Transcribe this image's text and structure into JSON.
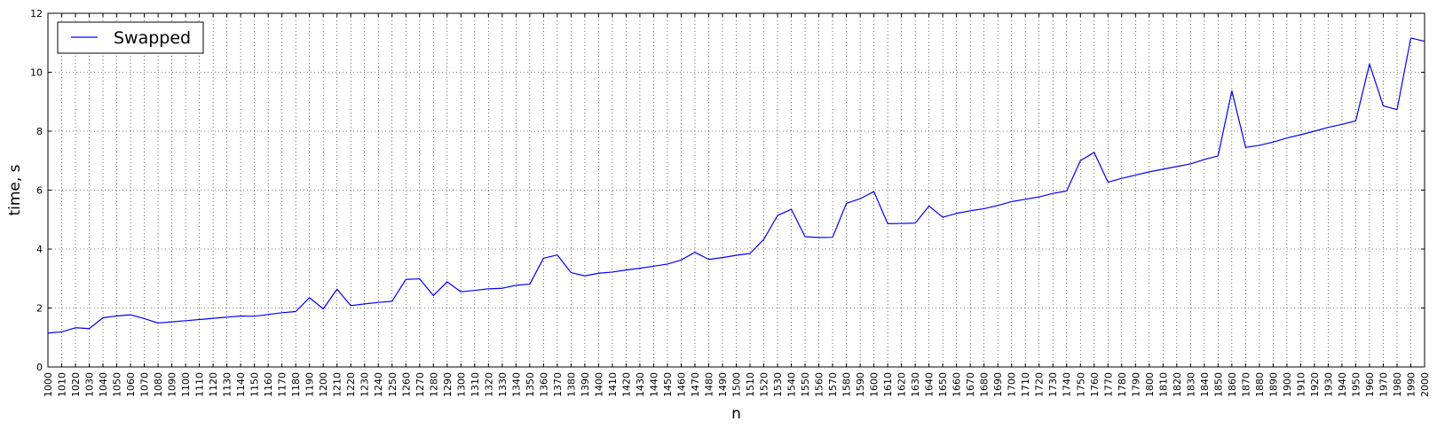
{
  "chart_data": {
    "type": "line",
    "xlabel": "n",
    "ylabel": "time, s",
    "xlim": [
      1000,
      2000
    ],
    "ylim": [
      0,
      12
    ],
    "x_ticks": [
      1000,
      1010,
      1020,
      1030,
      1040,
      1050,
      1060,
      1070,
      1080,
      1090,
      1100,
      1110,
      1120,
      1130,
      1140,
      1150,
      1160,
      1170,
      1180,
      1190,
      1200,
      1210,
      1220,
      1230,
      1240,
      1250,
      1260,
      1270,
      1280,
      1290,
      1300,
      1310,
      1320,
      1330,
      1340,
      1350,
      1360,
      1370,
      1380,
      1390,
      1400,
      1410,
      1420,
      1430,
      1440,
      1450,
      1460,
      1470,
      1480,
      1490,
      1500,
      1510,
      1520,
      1530,
      1540,
      1550,
      1560,
      1570,
      1580,
      1590,
      1600,
      1610,
      1620,
      1630,
      1640,
      1650,
      1660,
      1670,
      1680,
      1690,
      1700,
      1710,
      1720,
      1730,
      1740,
      1750,
      1760,
      1770,
      1780,
      1790,
      1800,
      1810,
      1820,
      1830,
      1840,
      1850,
      1860,
      1870,
      1880,
      1890,
      1900,
      1910,
      1920,
      1930,
      1940,
      1950,
      1960,
      1970,
      1980,
      1990,
      2000
    ],
    "y_ticks": [
      0,
      2,
      4,
      6,
      8,
      10,
      12
    ],
    "grid": true,
    "legend_position": "top-left",
    "series": [
      {
        "name": "Swapped",
        "color": "#0000ff",
        "x": [
          1000,
          1010,
          1020,
          1030,
          1040,
          1050,
          1060,
          1070,
          1080,
          1090,
          1100,
          1110,
          1120,
          1130,
          1140,
          1150,
          1160,
          1170,
          1180,
          1190,
          1200,
          1210,
          1220,
          1230,
          1240,
          1250,
          1260,
          1270,
          1280,
          1290,
          1300,
          1310,
          1320,
          1330,
          1340,
          1350,
          1360,
          1370,
          1380,
          1390,
          1400,
          1410,
          1420,
          1430,
          1440,
          1450,
          1460,
          1470,
          1480,
          1490,
          1500,
          1510,
          1520,
          1530,
          1540,
          1550,
          1560,
          1570,
          1580,
          1590,
          1600,
          1610,
          1620,
          1630,
          1640,
          1650,
          1660,
          1670,
          1680,
          1690,
          1700,
          1710,
          1720,
          1730,
          1740,
          1750,
          1760,
          1770,
          1780,
          1790,
          1800,
          1810,
          1820,
          1830,
          1840,
          1850,
          1860,
          1870,
          1880,
          1890,
          1900,
          1910,
          1920,
          1930,
          1940,
          1950,
          1960,
          1970,
          1980,
          1990,
          2000
        ],
        "values": [
          1.15,
          1.19,
          1.33,
          1.3,
          1.67,
          1.73,
          1.77,
          1.64,
          1.49,
          1.53,
          1.57,
          1.61,
          1.65,
          1.69,
          1.73,
          1.72,
          1.78,
          1.84,
          1.88,
          2.35,
          1.97,
          2.64,
          2.08,
          2.14,
          2.19,
          2.23,
          2.97,
          2.99,
          2.42,
          2.89,
          2.55,
          2.6,
          2.65,
          2.67,
          2.77,
          2.81,
          3.69,
          3.8,
          3.2,
          3.09,
          3.18,
          3.22,
          3.29,
          3.35,
          3.42,
          3.49,
          3.63,
          3.89,
          3.65,
          3.71,
          3.79,
          3.85,
          4.33,
          5.14,
          5.35,
          4.42,
          4.39,
          4.4,
          5.55,
          5.71,
          5.95,
          4.86,
          4.87,
          4.88,
          5.46,
          5.08,
          5.21,
          5.3,
          5.37,
          5.48,
          5.61,
          5.69,
          5.77,
          5.89,
          5.97,
          7.0,
          7.28,
          6.27,
          6.4,
          6.51,
          6.62,
          6.71,
          6.8,
          6.89,
          7.04,
          7.16,
          9.37,
          7.45,
          7.52,
          7.63,
          7.77,
          7.88,
          8.0,
          8.13,
          8.23,
          8.35,
          10.28,
          8.86,
          8.73,
          11.16,
          11.05
        ]
      }
    ]
  }
}
